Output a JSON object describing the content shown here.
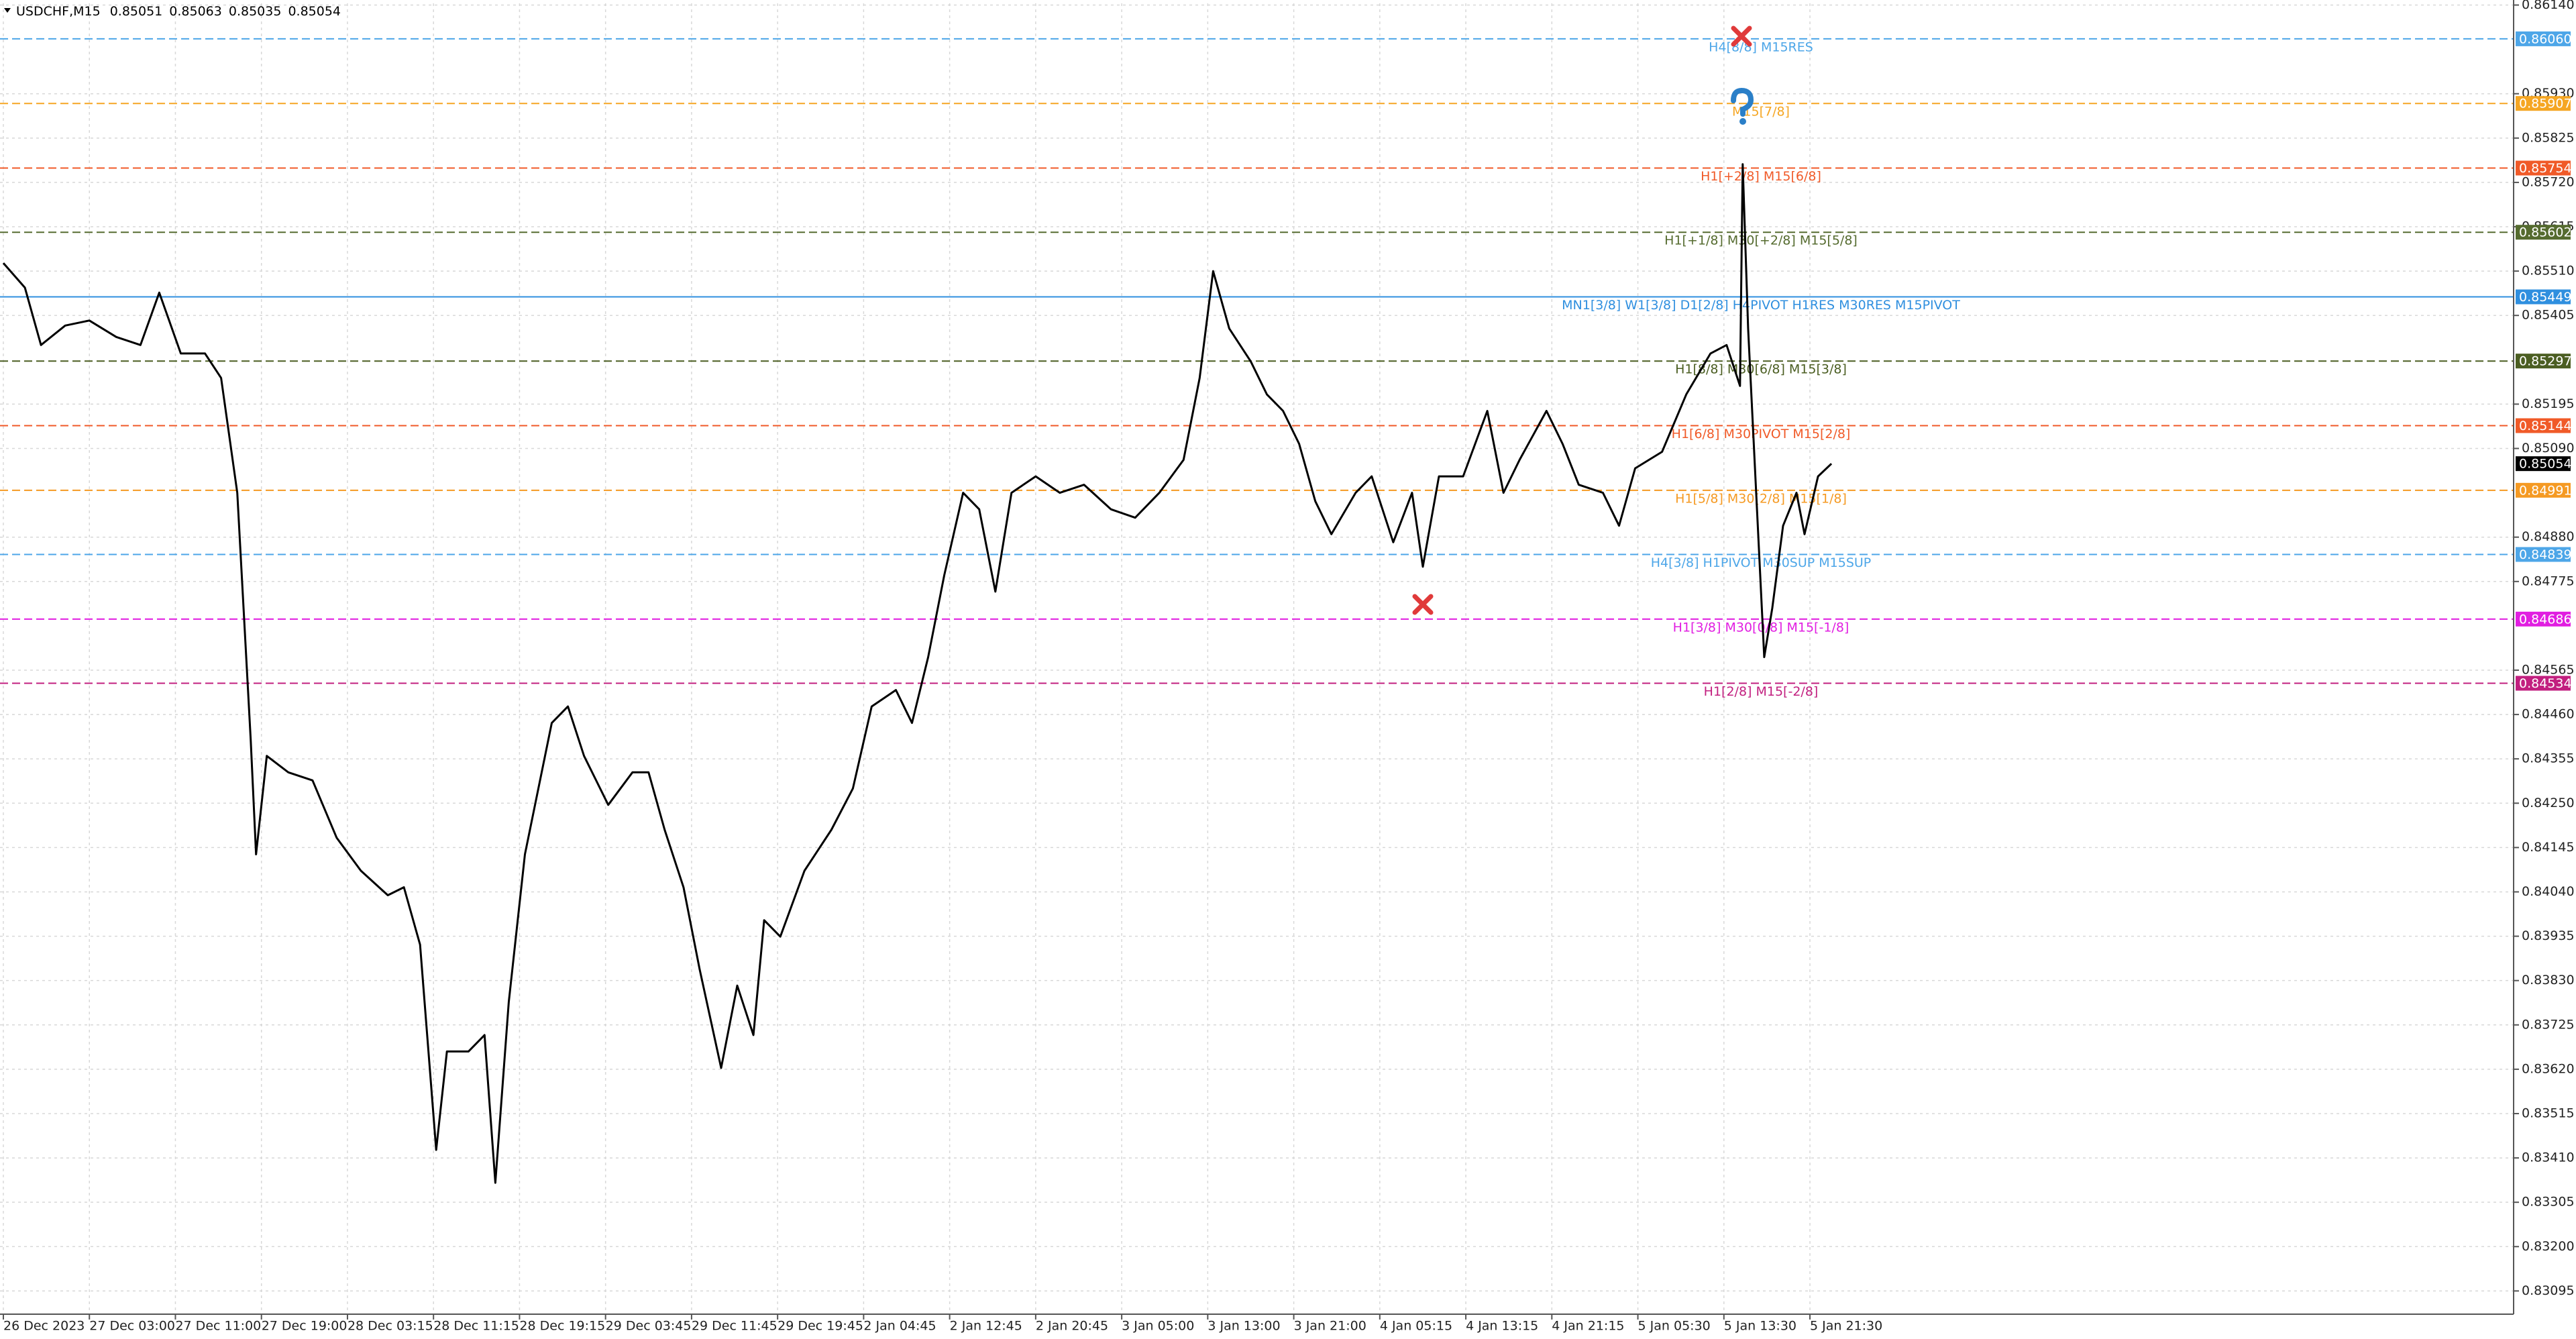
{
  "chart_data": {
    "type": "line",
    "title": "USDCHF,M15",
    "ohlc": [
      0.85051,
      0.85063,
      0.85035,
      0.85054
    ],
    "color": "#000000",
    "grid": true,
    "xlim": [
      0,
      935
    ],
    "xticks": [
      {
        "value": 0,
        "label": "26 Dec 2023"
      },
      {
        "value": 32,
        "label": "27 Dec 03:00"
      },
      {
        "value": 64,
        "label": "27 Dec 11:00"
      },
      {
        "value": 96,
        "label": "27 Dec 19:00"
      },
      {
        "value": 128,
        "label": "28 Dec 03:15"
      },
      {
        "value": 160,
        "label": "28 Dec 11:15"
      },
      {
        "value": 192,
        "label": "28 Dec 19:15"
      },
      {
        "value": 224,
        "label": "29 Dec 03:45"
      },
      {
        "value": 256,
        "label": "29 Dec 11:45"
      },
      {
        "value": 288,
        "label": "29 Dec 19:45"
      },
      {
        "value": 320,
        "label": "2 Jan 04:45"
      },
      {
        "value": 352,
        "label": "2 Jan 12:45"
      },
      {
        "value": 384,
        "label": "2 Jan 20:45"
      },
      {
        "value": 416,
        "label": "3 Jan 05:00"
      },
      {
        "value": 448,
        "label": "3 Jan 13:00"
      },
      {
        "value": 480,
        "label": "3 Jan 21:00"
      },
      {
        "value": 512,
        "label": "4 Jan 05:15"
      },
      {
        "value": 544,
        "label": "4 Jan 13:15"
      },
      {
        "value": 576,
        "label": "4 Jan 21:15"
      },
      {
        "value": 608,
        "label": "5 Jan 05:30"
      },
      {
        "value": 640,
        "label": "5 Jan 13:30"
      },
      {
        "value": 672,
        "label": "5 Jan 21:30"
      }
    ],
    "ylim": [
      0.8304,
      0.86144
    ],
    "yticks": [
      {
        "value": 0.8614,
        "label": "0.86140"
      },
      {
        "value": 0.8593,
        "label": "0.85930"
      },
      0.85825,
      {
        "value": 0.8572,
        "label": "0.85720"
      },
      0.85615,
      {
        "value": 0.8551,
        "label": "0.85510"
      },
      0.85405,
      0.85195,
      {
        "value": 0.8509,
        "label": "0.85090"
      },
      {
        "value": 0.8488,
        "label": "0.84880"
      },
      0.84775,
      0.84565,
      {
        "value": 0.8446,
        "label": "0.84460"
      },
      0.84355,
      {
        "value": 0.8425,
        "label": "0.84250"
      },
      0.84145,
      {
        "value": 0.8404,
        "label": "0.84040"
      },
      0.83935,
      {
        "value": 0.8383,
        "label": "0.83830"
      },
      0.83725,
      {
        "value": 0.8362,
        "label": "0.83620"
      },
      0.83515,
      {
        "value": 0.8341,
        "label": "0.83410"
      },
      0.83305,
      {
        "value": 0.832,
        "label": "0.83200"
      },
      0.83095
    ],
    "x": [
      0,
      8,
      14,
      23,
      32,
      42,
      51,
      58,
      66,
      75,
      81,
      87,
      92,
      94,
      98,
      106,
      115,
      124,
      133,
      143,
      149,
      155,
      161,
      165,
      173,
      179,
      183,
      188,
      194,
      204,
      210,
      216,
      225,
      234,
      240,
      246,
      253,
      259,
      267,
      273,
      279,
      283,
      289,
      298,
      308,
      316,
      323,
      332,
      338,
      344,
      350,
      357,
      363,
      369,
      375,
      384,
      393,
      402,
      412,
      421,
      430,
      439,
      445,
      450,
      456,
      464,
      470,
      476,
      482,
      488,
      494,
      503,
      509,
      517,
      524,
      528,
      534,
      543,
      552,
      558,
      564,
      574,
      580,
      586,
      595,
      601,
      607,
      617,
      626,
      635,
      641,
      646,
      647,
      649,
      652,
      655,
      658,
      662,
      667,
      670,
      675,
      680
    ],
    "values": [
      0.85529,
      0.85471,
      0.85335,
      0.85381,
      0.85393,
      0.85354,
      0.85335,
      0.85459,
      0.85315,
      0.85315,
      0.85257,
      0.84985,
      0.84401,
      0.84129,
      0.84362,
      0.84323,
      0.84304,
      0.84168,
      0.8409,
      0.84032,
      0.84051,
      0.83915,
      0.83429,
      0.83662,
      0.83662,
      0.83701,
      0.83351,
      0.83779,
      0.84129,
      0.8444,
      0.84479,
      0.84362,
      0.84246,
      0.84323,
      0.84323,
      0.84187,
      0.84051,
      0.83857,
      0.83623,
      0.83818,
      0.83701,
      0.83973,
      0.83934,
      0.8409,
      0.84187,
      0.84285,
      0.84479,
      0.84518,
      0.8444,
      0.84596,
      0.8479,
      0.84985,
      0.84946,
      0.84751,
      0.84985,
      0.85024,
      0.84985,
      0.85004,
      0.84946,
      0.84926,
      0.84985,
      0.85063,
      0.85257,
      0.8551,
      0.85374,
      0.85296,
      0.85218,
      0.85179,
      0.85101,
      0.84965,
      0.84887,
      0.84985,
      0.85024,
      0.84868,
      0.84985,
      0.8481,
      0.85024,
      0.85024,
      0.85179,
      0.84985,
      0.85063,
      0.85179,
      0.85101,
      0.85004,
      0.84985,
      0.84907,
      0.85043,
      0.85082,
      0.85218,
      0.85315,
      0.85335,
      0.85238,
      0.85763,
      0.85374,
      0.84985,
      0.84596,
      0.84712,
      0.84907,
      0.84985,
      0.84887,
      0.85024,
      0.85054
    ],
    "current": {
      "value": 0.85054
    },
    "levels": {
      "values": [
        0.8606,
        0.85907,
        0.85754,
        0.85602,
        0.85449,
        0.85297,
        0.85144,
        0.84991,
        0.84839,
        0.84686,
        0.84534
      ],
      "value_labels": [
        "0.86060",
        "0.85907",
        "0.85754",
        "0.85602",
        "0.85449",
        "0.85297",
        "0.85144",
        "0.84991",
        "0.84839",
        "0.84686",
        "0.84534"
      ],
      "names": [
        "H4[8/8] M15RES",
        "M15[7/8]",
        "H1[+2/8] M15[6/8]",
        "H1[+1/8] M30[+2/8] M15[5/8]",
        "MN1[3/8] W1[3/8] D1[2/8] H4PIVOT H1RES M30RES M15PIVOT",
        "H1[8/8] M30[6/8] M15[3/8]",
        "H1[6/8] M30PIVOT M15[2/8]",
        "H1[5/8] M30[2/8] M15[1/8]",
        "H4[3/8] H1PIVOT M30SUP M15SUP",
        "H1[3/8] M30[0/8] M15[-1/8]",
        "H1[2/8] M15[-2/8]"
      ],
      "colors": [
        "#4da6e8",
        "#f5a623",
        "#f05a28",
        "#556b2f",
        "#2f8fdf",
        "#4b5e22",
        "#f05a28",
        "#f59a23",
        "#4da6e8",
        "#e11ee1",
        "#c21f7f"
      ],
      "line_styles": [
        "dashed",
        "dashed",
        "dashed",
        "dashed",
        "solid",
        "dashed",
        "dashed",
        "dashed",
        "dashed",
        "dashed",
        "dashed"
      ]
    }
  }
}
